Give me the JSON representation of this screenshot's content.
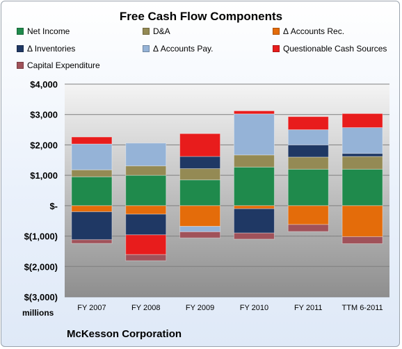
{
  "chart_data": {
    "type": "bar",
    "stacked": true,
    "title": "Free Cash Flow Components",
    "ylabel": "millions",
    "company": "McKesson Corporation",
    "categories": [
      "FY 2007",
      "FY 2008",
      "FY 2009",
      "FY 2010",
      "FY 2011",
      "TTM 6-2011"
    ],
    "y_ticks": [
      4000,
      3000,
      2000,
      1000,
      0,
      -1000,
      -2000,
      -3000
    ],
    "y_tick_labels": [
      "$4,000",
      "$3,000",
      "$2,000",
      "$1,000",
      "$-",
      "$(1,000)",
      "$(2,000)",
      "$(3,000)"
    ],
    "ylim": [
      -3000,
      4000
    ],
    "grid": true,
    "legend_position": "top",
    "series": [
      {
        "name": "Net Income",
        "color": "#1f8a4c",
        "values": [
          950,
          1000,
          850,
          1270,
          1200,
          1200
        ]
      },
      {
        "name": "D&A",
        "color": "#948a54",
        "values": [
          230,
          310,
          370,
          400,
          400,
          420
        ]
      },
      {
        "name": "Δ Accounts Rec.",
        "color": "#e46c0a",
        "values": [
          -200,
          -280,
          -680,
          -100,
          -620,
          -1020
        ]
      },
      {
        "name": "Δ Inventories",
        "color": "#1f3864",
        "values": [
          -920,
          -680,
          400,
          -800,
          400,
          100
        ]
      },
      {
        "name": "Δ Accounts Pay.",
        "color": "#95b3d7",
        "values": [
          850,
          750,
          -180,
          1350,
          500,
          850
        ]
      },
      {
        "name": "Questionable Cash Sources",
        "color": "#e81c1c",
        "values": [
          230,
          -650,
          750,
          100,
          430,
          460
        ]
      },
      {
        "name": "Capital Expenditure",
        "color": "#a0525a",
        "values": [
          -120,
          -200,
          -200,
          -200,
          -230,
          -230
        ]
      }
    ]
  }
}
